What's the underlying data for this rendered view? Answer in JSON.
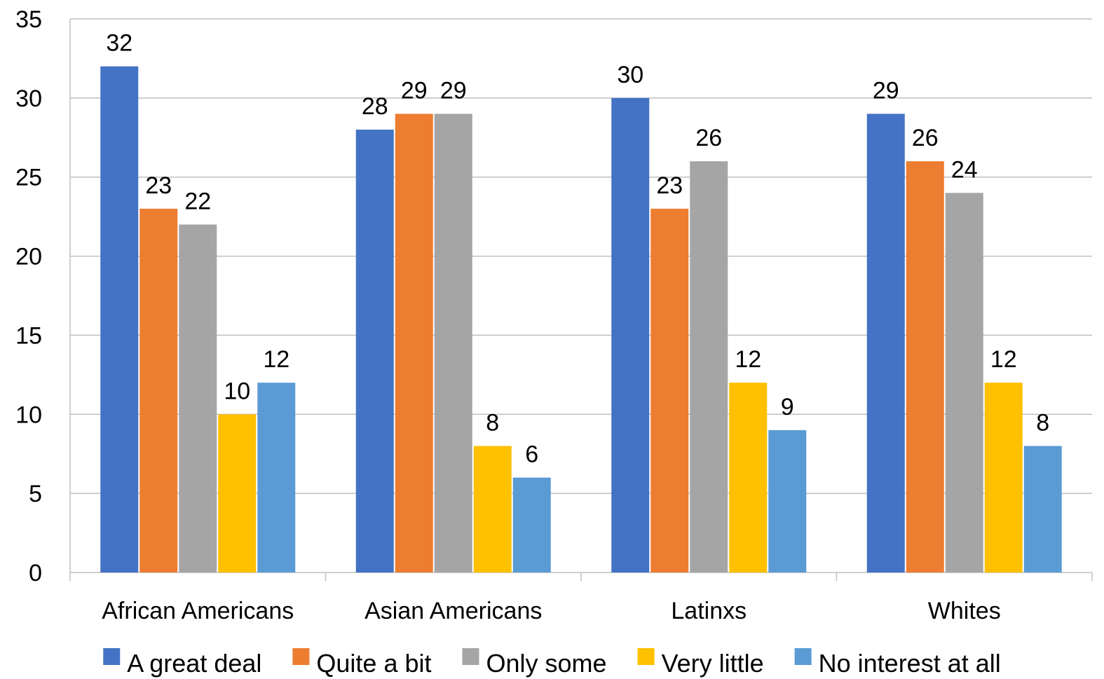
{
  "chart_data": {
    "type": "bar",
    "categories": [
      "African Americans",
      "Asian Americans",
      "Latinxs",
      "Whites"
    ],
    "series": [
      {
        "name": "A great deal",
        "color": "#4472C4",
        "values": [
          32,
          28,
          30,
          29
        ]
      },
      {
        "name": "Quite a bit",
        "color": "#ED7D31",
        "values": [
          23,
          29,
          23,
          26
        ]
      },
      {
        "name": "Only some",
        "color": "#A5A5A5",
        "values": [
          22,
          29,
          26,
          24
        ]
      },
      {
        "name": "Very little",
        "color": "#FFC000",
        "values": [
          10,
          8,
          12,
          12
        ]
      },
      {
        "name": "No interest at all",
        "color": "#5B9BD5",
        "values": [
          12,
          6,
          9,
          8
        ]
      }
    ],
    "title": "",
    "xlabel": "",
    "ylabel": "",
    "ylim": [
      0,
      35
    ],
    "yticks": [
      0,
      5,
      10,
      15,
      20,
      25,
      30,
      35
    ],
    "grid": "horizontal",
    "data_labels": true,
    "legend_position": "bottom",
    "axis_color": "#bfbfbf",
    "grid_color": "#bfbfbf"
  }
}
